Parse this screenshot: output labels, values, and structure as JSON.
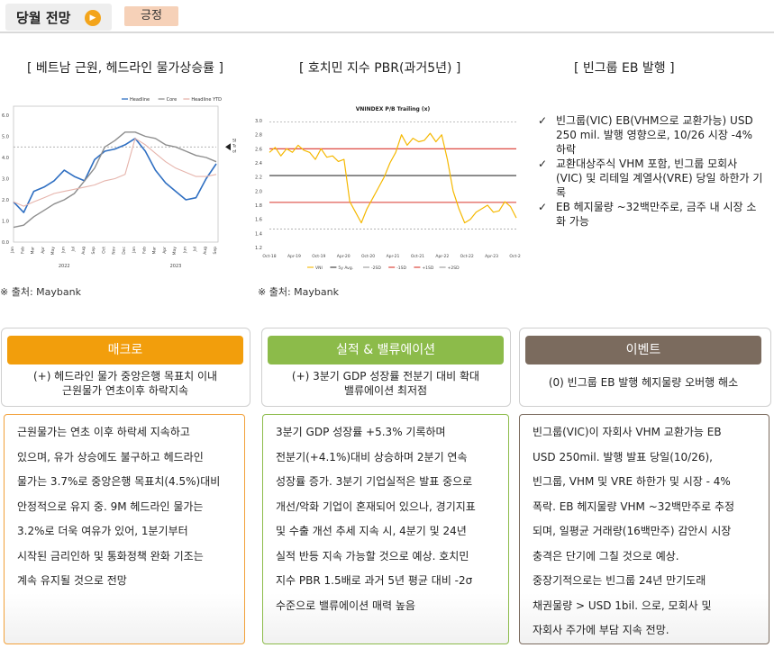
{
  "header": {
    "title": "당월 전망",
    "play_icon": "play-icon",
    "badge": "긍정",
    "badge_color": "#f6d1b8",
    "play_color": "#f3a41a"
  },
  "panels": {
    "chart1_title": "[ 베트남 근원, 헤드라인 물가상승률 ]",
    "chart2_title": "[ 호치민 지수 PBR(과거5년) ]",
    "eb_title": "[ 빈그룹 EB 발행 ]",
    "source1": "※ 출처: Maybank",
    "source2": "※ 출처: Maybank",
    "eb_items": [
      "빈그룹(VIC) EB(VHM으로 교환가능) USD 250 mil. 발행 영향으로, 10/26 시장 -4% 하락",
      "교환대상주식 VHM 포함, 빈그룹 모회사(VIC) 및 리테일 계열사(VRE) 당일 하한가 기록",
      "EB 헤지물량 ~32백만주로, 금주 내 시장 소화 가능"
    ],
    "check_glyph": "✓"
  },
  "columns": [
    {
      "title": "매크로",
      "color": "#f29e0c",
      "subtitle": "(+) 헤드라인 물가 중앙은행 목표치 이내\n근원물가 연초이후 하락지속",
      "body_lines": [
        "근원물가는 연초 이후 하락세 지속하고",
        "있으며, 유가 상승에도 불구하고 헤드라인",
        "물가는 3.7%로 중앙은행 목표치(4.5%)대비",
        "안정적으로 유지 중. 9M 헤드라인 물가는",
        "3.2%로 더욱 여유가 있어, 1분기부터",
        "시작된 금리인하 및 통화정책 완화 기조는",
        "계속 유지될 것으로 전망"
      ]
    },
    {
      "title": "실적 & 밸류에이션",
      "color": "#8cbb4a",
      "subtitle": "(+) 3분기 GDP 성장률 전분기 대비 확대\n밸류에이션 최저점",
      "body_lines": [
        "3분기 GDP 성장률 +5.3% 기록하며",
        "전분기(+4.1%)대비 상승하며 2분기 연속",
        "성장률 증가. 3분기 기업실적은 발표 중으로",
        "개선/악화 기업이 혼재되어 있으나, 경기지표",
        "및 수출 개선 추세 지속 시, 4분기 및 24년",
        "실적 반등 지속 가능할 것으로 예상. 호치민",
        "지수 PBR 1.5배로 과거 5년 평균 대비 -2σ",
        "수준으로 밸류에이션 매력 높음"
      ]
    },
    {
      "title": "이벤트",
      "color": "#7b6b5e",
      "subtitle": "(0) 빈그룹 EB 발행 헤지물량 오버행 해소",
      "body_lines": [
        "빈그룹(VIC)이 자회사 VHM 교환가능 EB",
        "USD 250mil. 발행 발표 당일(10/26),",
        "빈그룹, VHM 및 VRE 하한가 및 시장 - 4%",
        "폭락. EB 헤지물량 VHM ~32백만주로 추정",
        "되며, 일평균 거래량(16백만주) 감안시 시장",
        "충격은 단기에 그칠 것으로 예상.",
        "중장기적으로는 빈그룹 24년 만기도래",
        "채권물량 > USD 1bil. 으로, 모회사 및",
        "자회사 주가에 부담 지속 전망."
      ]
    }
  ],
  "chart_data": [
    {
      "type": "line",
      "title": "",
      "legend": [
        "Headline",
        "Core",
        "Headline YTD"
      ],
      "colors": [
        "#2f6fc2",
        "#8e8e8e",
        "#e6b4ac"
      ],
      "x_tick_labels": [
        "Jan",
        "Feb",
        "Mar",
        "Apr",
        "May",
        "Jun",
        "Jul",
        "Aug",
        "Sep",
        "Oct",
        "Nov",
        "Dec",
        "Jan",
        "Feb",
        "Mar",
        "Apr",
        "May",
        "Jun",
        "Jul",
        "Aug",
        "Sep"
      ],
      "year_labels": [
        "2022",
        "2023"
      ],
      "ylim": [
        0,
        6
      ],
      "y_ticks": [
        "0.0",
        "1.0",
        "2.0",
        "3.0",
        "4.0",
        "5.0",
        "6.0"
      ],
      "annotation": "SBV Target of 4.5%",
      "target": 4.5,
      "series": [
        {
          "name": "Headline",
          "values": [
            1.9,
            1.4,
            2.4,
            2.6,
            2.9,
            3.4,
            3.1,
            2.9,
            3.9,
            4.3,
            4.4,
            4.6,
            4.9,
            4.3,
            3.4,
            2.8,
            2.4,
            2.0,
            2.1,
            3.0,
            3.7
          ]
        },
        {
          "name": "Core",
          "values": [
            0.7,
            0.8,
            1.2,
            1.5,
            1.8,
            2.0,
            2.3,
            2.9,
            3.5,
            4.5,
            4.8,
            5.2,
            5.2,
            5.0,
            4.9,
            4.6,
            4.5,
            4.3,
            4.1,
            4.0,
            3.8
          ]
        },
        {
          "name": "Headline YTD",
          "values": [
            1.9,
            1.7,
            1.9,
            2.1,
            2.3,
            2.4,
            2.5,
            2.6,
            2.7,
            2.9,
            3.0,
            3.2,
            4.9,
            4.6,
            4.2,
            3.8,
            3.5,
            3.3,
            3.1,
            3.1,
            3.2
          ]
        }
      ]
    },
    {
      "type": "line",
      "title": "VNINDEX P/B Trailing (x)",
      "x_tick_labels": [
        "Oct-18",
        "Apr-19",
        "Oct-19",
        "Apr-20",
        "Oct-20",
        "Apr-21",
        "Oct-21",
        "Apr-22",
        "Oct-22",
        "Apr-23",
        "Oct-23"
      ],
      "ylim": [
        1.2,
        3.0
      ],
      "y_ticks": [
        "1.2",
        "1.4",
        "1.6",
        "1.8",
        "2.0",
        "2.2",
        "2.4",
        "2.6",
        "2.8",
        "3.0"
      ],
      "legend": [
        "VNI",
        "5y Avg.",
        "-2SD",
        "-1SD",
        "+1SD",
        "+2SD"
      ],
      "reference_lines": {
        "avg": 2.22,
        "plus1sd": 2.6,
        "minus1sd": 1.84,
        "plus2sd": 2.98,
        "minus2sd": 1.46
      },
      "colors": {
        "vni": "#f5b800",
        "avg": "#333333",
        "sd1": "#d9342b",
        "sd2": "#999999"
      },
      "series": [
        {
          "name": "VNI",
          "values": [
            2.55,
            2.62,
            2.5,
            2.6,
            2.55,
            2.65,
            2.58,
            2.55,
            2.45,
            2.6,
            2.48,
            2.5,
            2.42,
            2.45,
            1.85,
            1.7,
            1.55,
            1.75,
            1.9,
            2.05,
            2.2,
            2.4,
            2.55,
            2.8,
            2.65,
            2.75,
            2.7,
            2.72,
            2.82,
            2.7,
            2.8,
            2.45,
            2.0,
            1.75,
            1.55,
            1.6,
            1.7,
            1.75,
            1.8,
            1.7,
            1.72,
            1.85,
            1.78,
            1.62
          ]
        }
      ]
    }
  ]
}
